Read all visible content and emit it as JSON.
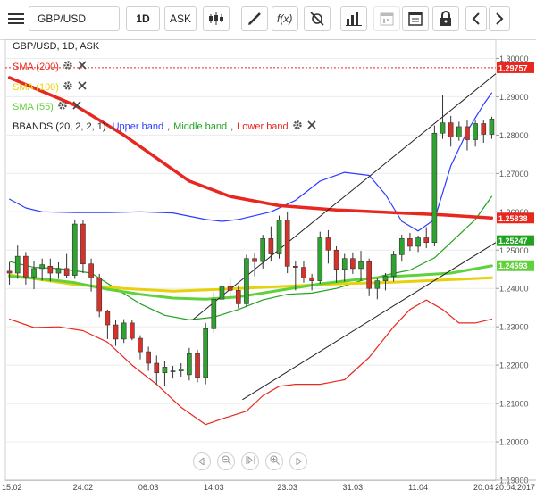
{
  "toolbar": {
    "symbol": "GBP/USD",
    "timeframe": "1D",
    "price_type": "ASK"
  },
  "legend": {
    "instrument": "GBP/USD, 1D, ASK",
    "sma200": "SMA (200)",
    "sma100": "SMA (100)",
    "sma55": "SMA (55)",
    "bbands_prefix": "BBANDS (20, 2, 2, 1):",
    "bb_upper": "Upper band",
    "bb_middle": "Middle band",
    "bb_lower": "Lower band"
  },
  "colors": {
    "sma200": "#e8281f",
    "sma100": "#e8d10c",
    "sma55": "#60d13c",
    "bb_upper": "#2b3cff",
    "bb_middle": "#1fa31f",
    "bb_lower": "#e8281f",
    "bull": "#2fa32f",
    "bear": "#d7322a",
    "last_price": "#e8281f"
  },
  "chart_data": {
    "type": "candlestick",
    "ylim": [
      1.19,
      1.305
    ],
    "y_ticks": [
      "1.30000",
      "1.29000",
      "1.28000",
      "1.27000",
      "1.26000",
      "1.25000",
      "1.24000",
      "1.23000",
      "1.22000",
      "1.21000",
      "1.20000",
      "1.19000"
    ],
    "x_labels": [
      "15.02",
      "24.02",
      "06.03",
      "14.03",
      "23.03",
      "31.03",
      "11.04",
      "20.04",
      "20.04.2017"
    ],
    "price_tags": [
      {
        "label": "1.29757",
        "value": 1.29757,
        "color": "#e8281f"
      },
      {
        "label": "1.25838",
        "value": 1.25838,
        "color": "#e8281f"
      },
      {
        "label": "1.25247",
        "value": 1.25247,
        "color": "#1fa31f"
      },
      {
        "label": "1.24593",
        "value": 1.24593,
        "color": "#60d13c"
      }
    ],
    "candles": [
      {
        "o": 1.2445,
        "h": 1.2468,
        "l": 1.241,
        "c": 1.244
      },
      {
        "o": 1.244,
        "h": 1.2512,
        "l": 1.2425,
        "c": 1.2484
      },
      {
        "o": 1.2484,
        "h": 1.2495,
        "l": 1.241,
        "c": 1.243
      },
      {
        "o": 1.243,
        "h": 1.2472,
        "l": 1.2398,
        "c": 1.2452
      },
      {
        "o": 1.2452,
        "h": 1.2478,
        "l": 1.242,
        "c": 1.2462
      },
      {
        "o": 1.2458,
        "h": 1.2478,
        "l": 1.2418,
        "c": 1.244
      },
      {
        "o": 1.244,
        "h": 1.2468,
        "l": 1.2425,
        "c": 1.2452
      },
      {
        "o": 1.2452,
        "h": 1.249,
        "l": 1.2428,
        "c": 1.2434
      },
      {
        "o": 1.2434,
        "h": 1.258,
        "l": 1.2425,
        "c": 1.2568
      },
      {
        "o": 1.2568,
        "h": 1.2578,
        "l": 1.244,
        "c": 1.2464
      },
      {
        "o": 1.2464,
        "h": 1.2478,
        "l": 1.2392,
        "c": 1.2428
      },
      {
        "o": 1.2428,
        "h": 1.2438,
        "l": 1.2325,
        "c": 1.234
      },
      {
        "o": 1.234,
        "h": 1.2345,
        "l": 1.2268,
        "c": 1.2305
      },
      {
        "o": 1.2305,
        "h": 1.2318,
        "l": 1.225,
        "c": 1.2268
      },
      {
        "o": 1.2268,
        "h": 1.232,
        "l": 1.2258,
        "c": 1.231
      },
      {
        "o": 1.231,
        "h": 1.2318,
        "l": 1.2265,
        "c": 1.227
      },
      {
        "o": 1.227,
        "h": 1.2278,
        "l": 1.2215,
        "c": 1.2235
      },
      {
        "o": 1.2235,
        "h": 1.2248,
        "l": 1.2185,
        "c": 1.2205
      },
      {
        "o": 1.2205,
        "h": 1.2225,
        "l": 1.215,
        "c": 1.218
      },
      {
        "o": 1.218,
        "h": 1.2212,
        "l": 1.2145,
        "c": 1.2195
      },
      {
        "o": 1.2185,
        "h": 1.2198,
        "l": 1.2165,
        "c": 1.2185
      },
      {
        "o": 1.2185,
        "h": 1.2205,
        "l": 1.217,
        "c": 1.219
      },
      {
        "o": 1.2175,
        "h": 1.2245,
        "l": 1.216,
        "c": 1.223
      },
      {
        "o": 1.223,
        "h": 1.224,
        "l": 1.2155,
        "c": 1.2168
      },
      {
        "o": 1.2168,
        "h": 1.231,
        "l": 1.215,
        "c": 1.2295
      },
      {
        "o": 1.2295,
        "h": 1.239,
        "l": 1.2285,
        "c": 1.2372
      },
      {
        "o": 1.2372,
        "h": 1.2412,
        "l": 1.2338,
        "c": 1.2405
      },
      {
        "o": 1.2405,
        "h": 1.2428,
        "l": 1.238,
        "c": 1.2395
      },
      {
        "o": 1.2395,
        "h": 1.2408,
        "l": 1.2348,
        "c": 1.236
      },
      {
        "o": 1.236,
        "h": 1.2488,
        "l": 1.2352,
        "c": 1.2478
      },
      {
        "o": 1.2478,
        "h": 1.2492,
        "l": 1.2432,
        "c": 1.247
      },
      {
        "o": 1.247,
        "h": 1.254,
        "l": 1.2452,
        "c": 1.253
      },
      {
        "o": 1.253,
        "h": 1.2562,
        "l": 1.247,
        "c": 1.249
      },
      {
        "o": 1.249,
        "h": 1.259,
        "l": 1.2478,
        "c": 1.2578
      },
      {
        "o": 1.2578,
        "h": 1.26,
        "l": 1.244,
        "c": 1.2458
      },
      {
        "o": 1.2458,
        "h": 1.2472,
        "l": 1.2395,
        "c": 1.2455
      },
      {
        "o": 1.2455,
        "h": 1.2472,
        "l": 1.2415,
        "c": 1.2428
      },
      {
        "o": 1.2428,
        "h": 1.2438,
        "l": 1.2395,
        "c": 1.242
      },
      {
        "o": 1.242,
        "h": 1.2548,
        "l": 1.2412,
        "c": 1.2532
      },
      {
        "o": 1.2532,
        "h": 1.2552,
        "l": 1.2465,
        "c": 1.25
      },
      {
        "o": 1.25,
        "h": 1.251,
        "l": 1.2415,
        "c": 1.245
      },
      {
        "o": 1.245,
        "h": 1.249,
        "l": 1.2418,
        "c": 1.2478
      },
      {
        "o": 1.2478,
        "h": 1.2494,
        "l": 1.2438,
        "c": 1.2452
      },
      {
        "o": 1.2452,
        "h": 1.2498,
        "l": 1.242,
        "c": 1.247
      },
      {
        "o": 1.247,
        "h": 1.2478,
        "l": 1.238,
        "c": 1.24
      },
      {
        "o": 1.24,
        "h": 1.2428,
        "l": 1.2372,
        "c": 1.242
      },
      {
        "o": 1.242,
        "h": 1.244,
        "l": 1.2395,
        "c": 1.2432
      },
      {
        "o": 1.2432,
        "h": 1.2498,
        "l": 1.2418,
        "c": 1.2488
      },
      {
        "o": 1.2488,
        "h": 1.254,
        "l": 1.247,
        "c": 1.253
      },
      {
        "o": 1.253,
        "h": 1.2545,
        "l": 1.2498,
        "c": 1.251
      },
      {
        "o": 1.251,
        "h": 1.2538,
        "l": 1.2495,
        "c": 1.2532
      },
      {
        "o": 1.2532,
        "h": 1.256,
        "l": 1.2505,
        "c": 1.252
      },
      {
        "o": 1.252,
        "h": 1.2825,
        "l": 1.251,
        "c": 1.2805
      },
      {
        "o": 1.2805,
        "h": 1.2905,
        "l": 1.279,
        "c": 1.2832
      },
      {
        "o": 1.2832,
        "h": 1.285,
        "l": 1.277,
        "c": 1.2795
      },
      {
        "o": 1.2795,
        "h": 1.2835,
        "l": 1.2785,
        "c": 1.2822
      },
      {
        "o": 1.2822,
        "h": 1.2838,
        "l": 1.276,
        "c": 1.2788
      },
      {
        "o": 1.2788,
        "h": 1.2838,
        "l": 1.277,
        "c": 1.283
      },
      {
        "o": 1.283,
        "h": 1.284,
        "l": 1.278,
        "c": 1.2802
      },
      {
        "o": 1.2802,
        "h": 1.2848,
        "l": 1.279,
        "c": 1.2842
      }
    ],
    "series": [
      {
        "name": "SMA (200)",
        "color": "#e8281f",
        "values": [
          [
            0,
            1.295
          ],
          [
            8,
            1.2878
          ],
          [
            14,
            1.28
          ],
          [
            18,
            1.274
          ],
          [
            22,
            1.268
          ],
          [
            27,
            1.264
          ],
          [
            33,
            1.2616
          ],
          [
            40,
            1.2605
          ],
          [
            47,
            1.2598
          ],
          [
            53,
            1.2592
          ],
          [
            59,
            1.2584
          ]
        ]
      },
      {
        "name": "SMA (100)",
        "color": "#e8d10c",
        "values": [
          [
            0,
            1.2435
          ],
          [
            8,
            1.241
          ],
          [
            14,
            1.24
          ],
          [
            20,
            1.2393
          ],
          [
            26,
            1.2398
          ],
          [
            33,
            1.2405
          ],
          [
            40,
            1.2412
          ],
          [
            47,
            1.2416
          ],
          [
            53,
            1.2422
          ],
          [
            59,
            1.2428
          ]
        ]
      },
      {
        "name": "SMA (55)",
        "color": "#60d13c",
        "values": [
          [
            0,
            1.2432
          ],
          [
            4,
            1.2425
          ],
          [
            8,
            1.2415
          ],
          [
            12,
            1.2398
          ],
          [
            16,
            1.2385
          ],
          [
            20,
            1.2375
          ],
          [
            24,
            1.2372
          ],
          [
            28,
            1.2378
          ],
          [
            33,
            1.2395
          ],
          [
            38,
            1.2412
          ],
          [
            42,
            1.2422
          ],
          [
            46,
            1.243
          ],
          [
            50,
            1.2435
          ],
          [
            54,
            1.244
          ],
          [
            59,
            1.2459
          ]
        ]
      },
      {
        "name": "Upper band",
        "color": "#2b3cff",
        "values": [
          [
            0,
            1.2633
          ],
          [
            2,
            1.261
          ],
          [
            4,
            1.26
          ],
          [
            8,
            1.2598
          ],
          [
            12,
            1.2598
          ],
          [
            16,
            1.26
          ],
          [
            20,
            1.2597
          ],
          [
            24,
            1.258
          ],
          [
            26,
            1.2575
          ],
          [
            28,
            1.258
          ],
          [
            32,
            1.26
          ],
          [
            35,
            1.263
          ],
          [
            38,
            1.268
          ],
          [
            41,
            1.2703
          ],
          [
            44,
            1.2695
          ],
          [
            46,
            1.2645
          ],
          [
            48,
            1.2575
          ],
          [
            50,
            1.255
          ],
          [
            52,
            1.258
          ],
          [
            54,
            1.272
          ],
          [
            56,
            1.281
          ],
          [
            58,
            1.288
          ],
          [
            59,
            1.291
          ]
        ]
      },
      {
        "name": "Middle band",
        "color": "#1fa31f",
        "values": [
          [
            0,
            1.247
          ],
          [
            3,
            1.2455
          ],
          [
            6,
            1.2452
          ],
          [
            10,
            1.244
          ],
          [
            13,
            1.24
          ],
          [
            16,
            1.236
          ],
          [
            19,
            1.233
          ],
          [
            22,
            1.2318
          ],
          [
            25,
            1.2325
          ],
          [
            28,
            1.2345
          ],
          [
            31,
            1.237
          ],
          [
            34,
            1.2385
          ],
          [
            37,
            1.2388
          ],
          [
            40,
            1.24
          ],
          [
            43,
            1.242
          ],
          [
            46,
            1.2435
          ],
          [
            49,
            1.2448
          ],
          [
            52,
            1.248
          ],
          [
            54,
            1.252
          ],
          [
            57,
            1.258
          ],
          [
            59,
            1.264
          ]
        ]
      },
      {
        "name": "Lower band",
        "color": "#e8281f",
        "values": [
          [
            0,
            1.232
          ],
          [
            3,
            1.2298
          ],
          [
            6,
            1.23
          ],
          [
            9,
            1.229
          ],
          [
            12,
            1.226
          ],
          [
            15,
            1.22
          ],
          [
            18,
            1.215
          ],
          [
            21,
            1.209
          ],
          [
            24,
            1.2045
          ],
          [
            26,
            1.206
          ],
          [
            29,
            1.208
          ],
          [
            31,
            1.212
          ],
          [
            33,
            1.2145
          ],
          [
            35,
            1.215
          ],
          [
            38,
            1.215
          ],
          [
            41,
            1.2162
          ],
          [
            44,
            1.222
          ],
          [
            47,
            1.23
          ],
          [
            49,
            1.2345
          ],
          [
            51,
            1.237
          ],
          [
            53,
            1.2345
          ],
          [
            55,
            1.231
          ],
          [
            57,
            1.231
          ],
          [
            59,
            1.232
          ]
        ]
      }
    ],
    "trendlines": [
      {
        "from": [
          22.5,
          1.232
        ],
        "to": [
          59.5,
          1.296
        ]
      },
      {
        "from": [
          28.5,
          1.211
        ],
        "to": [
          59.5,
          1.252
        ]
      }
    ],
    "last_price_line": 1.29757
  },
  "nav": {
    "buttons": [
      "scroll-left",
      "zoom-out",
      "reset",
      "zoom-in",
      "scroll-right"
    ]
  }
}
